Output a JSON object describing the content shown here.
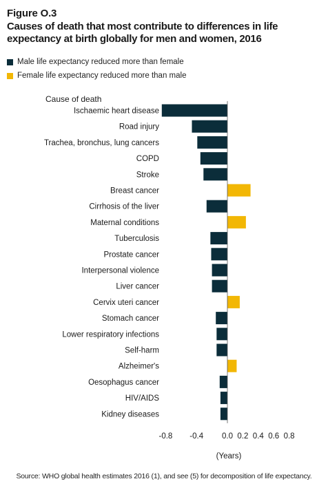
{
  "figure": {
    "label": "Figure O.3",
    "title": "Causes of death that most contribute to differences in life expectancy at birth globally for men and women, 2016"
  },
  "legend": [
    {
      "name": "Male life expectancy reduced more than female",
      "color": "#0b2d3a"
    },
    {
      "name": "Female life expectancy reduced more than male",
      "color": "#f2b705"
    }
  ],
  "source": "Source: WHO global health estimates 2016 (1), and see (5) for decomposition of life expectancy.",
  "chart_data": {
    "type": "bar",
    "orientation": "horizontal",
    "title": "",
    "ylabel": "Cause of death",
    "xlabel": "(Years)",
    "xlim": [
      -0.9,
      0.9
    ],
    "xticks": [
      -0.8,
      -0.4,
      0.0,
      0.2,
      0.4,
      0.6,
      0.8
    ],
    "xtick_labels": [
      "-0.8",
      "-0.4",
      "0.0",
      "0.2",
      "0.4",
      "0.6",
      "0.8"
    ],
    "grid": false,
    "legend_position": "top-left",
    "categories": [
      "Ischaemic heart disease",
      "Road injury",
      "Trachea, bronchus, lung cancers",
      "COPD",
      "Stroke",
      "Breast cancer",
      "Cirrhosis of the liver",
      "Maternal conditions",
      "Tuberculosis",
      "Prostate cancer",
      "Interpersonal violence",
      "Liver cancer",
      "Cervix uteri cancer",
      "Stomach cancer",
      "Lower respiratory infections",
      "Self-harm",
      "Alzheimer's",
      "Oesophagus cancer",
      "HIV/AIDS",
      "Kidney diseases"
    ],
    "values": [
      -0.85,
      -0.46,
      -0.39,
      -0.35,
      -0.31,
      0.3,
      -0.27,
      0.24,
      -0.22,
      -0.21,
      -0.2,
      -0.2,
      0.16,
      -0.15,
      -0.14,
      -0.14,
      0.12,
      -0.1,
      -0.09,
      -0.09
    ],
    "colors": {
      "negative": "#0b2d3a",
      "positive": "#f2b705"
    }
  }
}
